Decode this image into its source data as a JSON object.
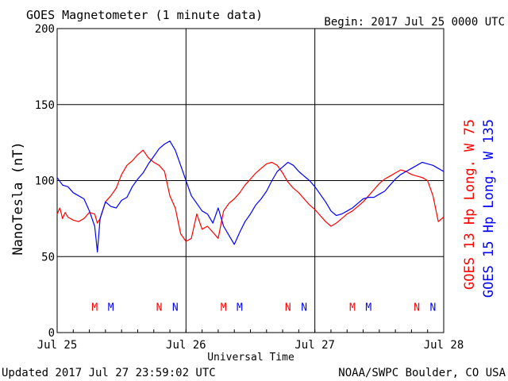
{
  "header": {
    "title": "GOES Magnetometer (1 minute data)",
    "begin": "Begin:  2017 Jul 25 0000 UTC"
  },
  "footer": {
    "updated": "Updated 2017 Jul 27 23:59:02 UTC",
    "credit": "NOAA/SWPC Boulder, CO USA"
  },
  "colors": {
    "goes13": "#ff0000",
    "goes15": "#0000ff",
    "axes": "#000000",
    "background": "#ffffff"
  },
  "chart_data": {
    "type": "line",
    "title": "GOES Magnetometer (1 minute data)",
    "xlabel": "Universal Time",
    "ylabel": "NanoTesla (nT)",
    "xlim": [
      "2017-07-25",
      "2017-07-28"
    ],
    "ylim": [
      0,
      200
    ],
    "x_tick_labels": [
      "Jul 25",
      "Jul 26",
      "Jul 27",
      "Jul 28"
    ],
    "x_tick_dates": [
      "2017-07-25",
      "2017-07-26",
      "2017-07-27",
      "2017-07-28"
    ],
    "y_ticks": [
      0,
      50,
      100,
      150,
      200
    ],
    "grid": true,
    "legend": "right-vertical",
    "series": [
      {
        "name": "GOES 13 Hp  Long. W 75",
        "color": "#ff0000",
        "points": [
          [
            "2017-07-25T00:00",
            78
          ],
          [
            "2017-07-25T00:30",
            82
          ],
          [
            "2017-07-25T01:00",
            75
          ],
          [
            "2017-07-25T01:30",
            79
          ],
          [
            "2017-07-25T02:00",
            76
          ],
          [
            "2017-07-25T03:00",
            74
          ],
          [
            "2017-07-25T04:00",
            73
          ],
          [
            "2017-07-25T05:00",
            75
          ],
          [
            "2017-07-25T06:00",
            79
          ],
          [
            "2017-07-25T07:00",
            78
          ],
          [
            "2017-07-25T07:30",
            72
          ],
          [
            "2017-07-25T08:00",
            75
          ],
          [
            "2017-07-25T09:00",
            86
          ],
          [
            "2017-07-25T10:00",
            90
          ],
          [
            "2017-07-25T11:00",
            95
          ],
          [
            "2017-07-25T12:00",
            104
          ],
          [
            "2017-07-25T13:00",
            110
          ],
          [
            "2017-07-25T14:00",
            113
          ],
          [
            "2017-07-25T15:00",
            117
          ],
          [
            "2017-07-25T16:00",
            120
          ],
          [
            "2017-07-25T17:00",
            115
          ],
          [
            "2017-07-25T18:00",
            112
          ],
          [
            "2017-07-25T19:00",
            110
          ],
          [
            "2017-07-25T20:00",
            106
          ],
          [
            "2017-07-25T21:00",
            90
          ],
          [
            "2017-07-25T22:00",
            82
          ],
          [
            "2017-07-25T23:00",
            65
          ],
          [
            "2017-07-26T00:00",
            60
          ],
          [
            "2017-07-26T01:00",
            62
          ],
          [
            "2017-07-26T02:00",
            78
          ],
          [
            "2017-07-26T03:00",
            68
          ],
          [
            "2017-07-26T04:00",
            70
          ],
          [
            "2017-07-26T05:00",
            66
          ],
          [
            "2017-07-26T06:00",
            62
          ],
          [
            "2017-07-26T07:00",
            80
          ],
          [
            "2017-07-26T08:00",
            85
          ],
          [
            "2017-07-26T09:00",
            88
          ],
          [
            "2017-07-26T10:00",
            92
          ],
          [
            "2017-07-26T11:00",
            97
          ],
          [
            "2017-07-26T12:00",
            101
          ],
          [
            "2017-07-26T13:00",
            105
          ],
          [
            "2017-07-26T14:00",
            108
          ],
          [
            "2017-07-26T15:00",
            111
          ],
          [
            "2017-07-26T16:00",
            112
          ],
          [
            "2017-07-26T17:00",
            110
          ],
          [
            "2017-07-26T18:00",
            105
          ],
          [
            "2017-07-26T19:00",
            99
          ],
          [
            "2017-07-26T20:00",
            95
          ],
          [
            "2017-07-26T21:00",
            92
          ],
          [
            "2017-07-26T22:00",
            88
          ],
          [
            "2017-07-26T23:00",
            84
          ],
          [
            "2017-07-27T00:00",
            81
          ],
          [
            "2017-07-27T01:00",
            77
          ],
          [
            "2017-07-27T02:00",
            73
          ],
          [
            "2017-07-27T03:00",
            70
          ],
          [
            "2017-07-27T04:00",
            72
          ],
          [
            "2017-07-27T05:00",
            75
          ],
          [
            "2017-07-27T06:00",
            78
          ],
          [
            "2017-07-27T07:00",
            80
          ],
          [
            "2017-07-27T08:00",
            83
          ],
          [
            "2017-07-27T09:00",
            86
          ],
          [
            "2017-07-27T10:00",
            90
          ],
          [
            "2017-07-27T11:00",
            94
          ],
          [
            "2017-07-27T12:00",
            98
          ],
          [
            "2017-07-27T13:00",
            101
          ],
          [
            "2017-07-27T14:00",
            103
          ],
          [
            "2017-07-27T15:00",
            105
          ],
          [
            "2017-07-27T16:00",
            107
          ],
          [
            "2017-07-27T17:00",
            106
          ],
          [
            "2017-07-27T18:00",
            104
          ],
          [
            "2017-07-27T19:00",
            103
          ],
          [
            "2017-07-27T20:00",
            102
          ],
          [
            "2017-07-27T21:00",
            100
          ],
          [
            "2017-07-27T22:00",
            90
          ],
          [
            "2017-07-27T23:00",
            73
          ],
          [
            "2017-07-27T23:59",
            76
          ]
        ]
      },
      {
        "name": "GOES 15 Hp  Long. W 135",
        "color": "#0000ff",
        "points": [
          [
            "2017-07-25T00:00",
            102
          ],
          [
            "2017-07-25T01:00",
            97
          ],
          [
            "2017-07-25T02:00",
            96
          ],
          [
            "2017-07-25T03:00",
            92
          ],
          [
            "2017-07-25T04:00",
            90
          ],
          [
            "2017-07-25T05:00",
            88
          ],
          [
            "2017-07-25T06:00",
            80
          ],
          [
            "2017-07-25T07:00",
            70
          ],
          [
            "2017-07-25T07:30",
            53
          ],
          [
            "2017-07-25T08:00",
            75
          ],
          [
            "2017-07-25T09:00",
            86
          ],
          [
            "2017-07-25T10:00",
            83
          ],
          [
            "2017-07-25T11:00",
            82
          ],
          [
            "2017-07-25T12:00",
            87
          ],
          [
            "2017-07-25T13:00",
            89
          ],
          [
            "2017-07-25T14:00",
            96
          ],
          [
            "2017-07-25T15:00",
            101
          ],
          [
            "2017-07-25T16:00",
            105
          ],
          [
            "2017-07-25T17:00",
            111
          ],
          [
            "2017-07-25T18:00",
            116
          ],
          [
            "2017-07-25T19:00",
            121
          ],
          [
            "2017-07-25T20:00",
            124
          ],
          [
            "2017-07-25T21:00",
            126
          ],
          [
            "2017-07-25T22:00",
            120
          ],
          [
            "2017-07-25T23:00",
            110
          ],
          [
            "2017-07-26T00:00",
            100
          ],
          [
            "2017-07-26T01:00",
            90
          ],
          [
            "2017-07-26T02:00",
            85
          ],
          [
            "2017-07-26T03:00",
            80
          ],
          [
            "2017-07-26T04:00",
            78
          ],
          [
            "2017-07-26T05:00",
            72
          ],
          [
            "2017-07-26T06:00",
            82
          ],
          [
            "2017-07-26T07:00",
            70
          ],
          [
            "2017-07-26T08:00",
            64
          ],
          [
            "2017-07-26T09:00",
            58
          ],
          [
            "2017-07-26T10:00",
            66
          ],
          [
            "2017-07-26T11:00",
            73
          ],
          [
            "2017-07-26T12:00",
            78
          ],
          [
            "2017-07-26T13:00",
            84
          ],
          [
            "2017-07-26T14:00",
            88
          ],
          [
            "2017-07-26T15:00",
            93
          ],
          [
            "2017-07-26T16:00",
            100
          ],
          [
            "2017-07-26T17:00",
            106
          ],
          [
            "2017-07-26T18:00",
            109
          ],
          [
            "2017-07-26T19:00",
            112
          ],
          [
            "2017-07-26T20:00",
            110
          ],
          [
            "2017-07-26T21:00",
            106
          ],
          [
            "2017-07-26T22:00",
            103
          ],
          [
            "2017-07-26T23:00",
            100
          ],
          [
            "2017-07-27T00:00",
            96
          ],
          [
            "2017-07-27T01:00",
            91
          ],
          [
            "2017-07-27T02:00",
            86
          ],
          [
            "2017-07-27T03:00",
            80
          ],
          [
            "2017-07-27T04:00",
            77
          ],
          [
            "2017-07-27T05:00",
            78
          ],
          [
            "2017-07-27T06:00",
            80
          ],
          [
            "2017-07-27T07:00",
            82
          ],
          [
            "2017-07-27T08:00",
            85
          ],
          [
            "2017-07-27T09:00",
            88
          ],
          [
            "2017-07-27T10:00",
            89
          ],
          [
            "2017-07-27T11:00",
            89
          ],
          [
            "2017-07-27T12:00",
            91
          ],
          [
            "2017-07-27T13:00",
            93
          ],
          [
            "2017-07-27T14:00",
            97
          ],
          [
            "2017-07-27T15:00",
            101
          ],
          [
            "2017-07-27T16:00",
            104
          ],
          [
            "2017-07-27T17:00",
            106
          ],
          [
            "2017-07-27T18:00",
            108
          ],
          [
            "2017-07-27T19:00",
            110
          ],
          [
            "2017-07-27T20:00",
            112
          ],
          [
            "2017-07-27T21:00",
            111
          ],
          [
            "2017-07-27T22:00",
            110
          ],
          [
            "2017-07-27T23:00",
            108
          ],
          [
            "2017-07-27T23:59",
            106
          ]
        ]
      }
    ],
    "markers": [
      {
        "label": "M",
        "color": "#ff0000",
        "time": "2017-07-25T07:00",
        "value": 17
      },
      {
        "label": "M",
        "color": "#0000ff",
        "time": "2017-07-25T10:00",
        "value": 17
      },
      {
        "label": "N",
        "color": "#ff0000",
        "time": "2017-07-25T19:00",
        "value": 17
      },
      {
        "label": "N",
        "color": "#0000ff",
        "time": "2017-07-25T22:00",
        "value": 17
      },
      {
        "label": "M",
        "color": "#ff0000",
        "time": "2017-07-26T07:00",
        "value": 17
      },
      {
        "label": "M",
        "color": "#0000ff",
        "time": "2017-07-26T10:00",
        "value": 17
      },
      {
        "label": "N",
        "color": "#ff0000",
        "time": "2017-07-26T19:00",
        "value": 17
      },
      {
        "label": "N",
        "color": "#0000ff",
        "time": "2017-07-26T22:00",
        "value": 17
      },
      {
        "label": "M",
        "color": "#ff0000",
        "time": "2017-07-27T07:00",
        "value": 17
      },
      {
        "label": "M",
        "color": "#0000ff",
        "time": "2017-07-27T10:00",
        "value": 17
      },
      {
        "label": "N",
        "color": "#ff0000",
        "time": "2017-07-27T19:00",
        "value": 17
      },
      {
        "label": "N",
        "color": "#0000ff",
        "time": "2017-07-27T22:00",
        "value": 17
      }
    ]
  }
}
